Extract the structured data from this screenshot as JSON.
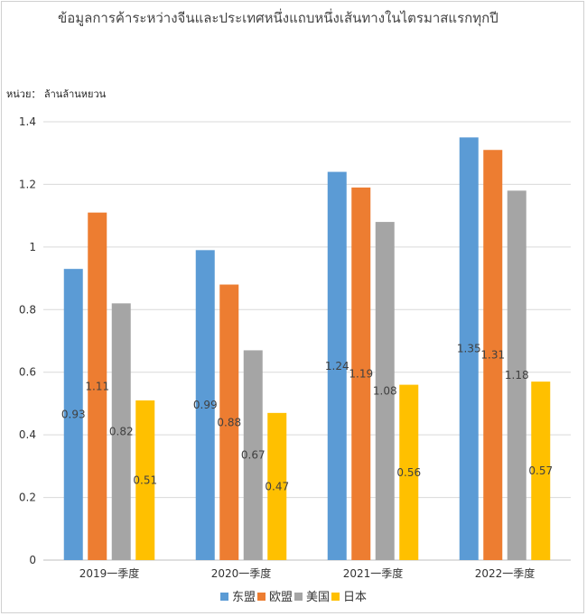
{
  "chart_data": {
    "type": "bar",
    "title": "ข้อมูลการค้าระหว่างจีนและประเทศหนึ่งแถบหนึ่งเส้นทางในไตรมาสแรกทุกปี",
    "unit_label": "หน่วย： ล้านล้านหยวน",
    "categories": [
      "2019一季度",
      "2020一季度",
      "2021一季度",
      "2022一季度"
    ],
    "series": [
      {
        "name": "东盟",
        "color": "#5b9bd5",
        "values": [
          0.93,
          0.99,
          1.24,
          1.35
        ]
      },
      {
        "name": "欧盟",
        "color": "#ed7d31",
        "values": [
          1.11,
          0.88,
          1.19,
          1.31
        ]
      },
      {
        "name": "美国",
        "color": "#a5a5a5",
        "values": [
          0.82,
          0.67,
          1.08,
          1.18
        ]
      },
      {
        "name": "日本",
        "color": "#ffc000",
        "values": [
          0.51,
          0.47,
          0.56,
          0.57
        ]
      }
    ],
    "ylim": [
      0,
      1.4
    ],
    "yticks": [
      "0",
      "0.2",
      "0.4",
      "0.6",
      "0.8",
      "1",
      "1.2",
      "1.4"
    ],
    "grid": true,
    "legend_position": "bottom"
  }
}
